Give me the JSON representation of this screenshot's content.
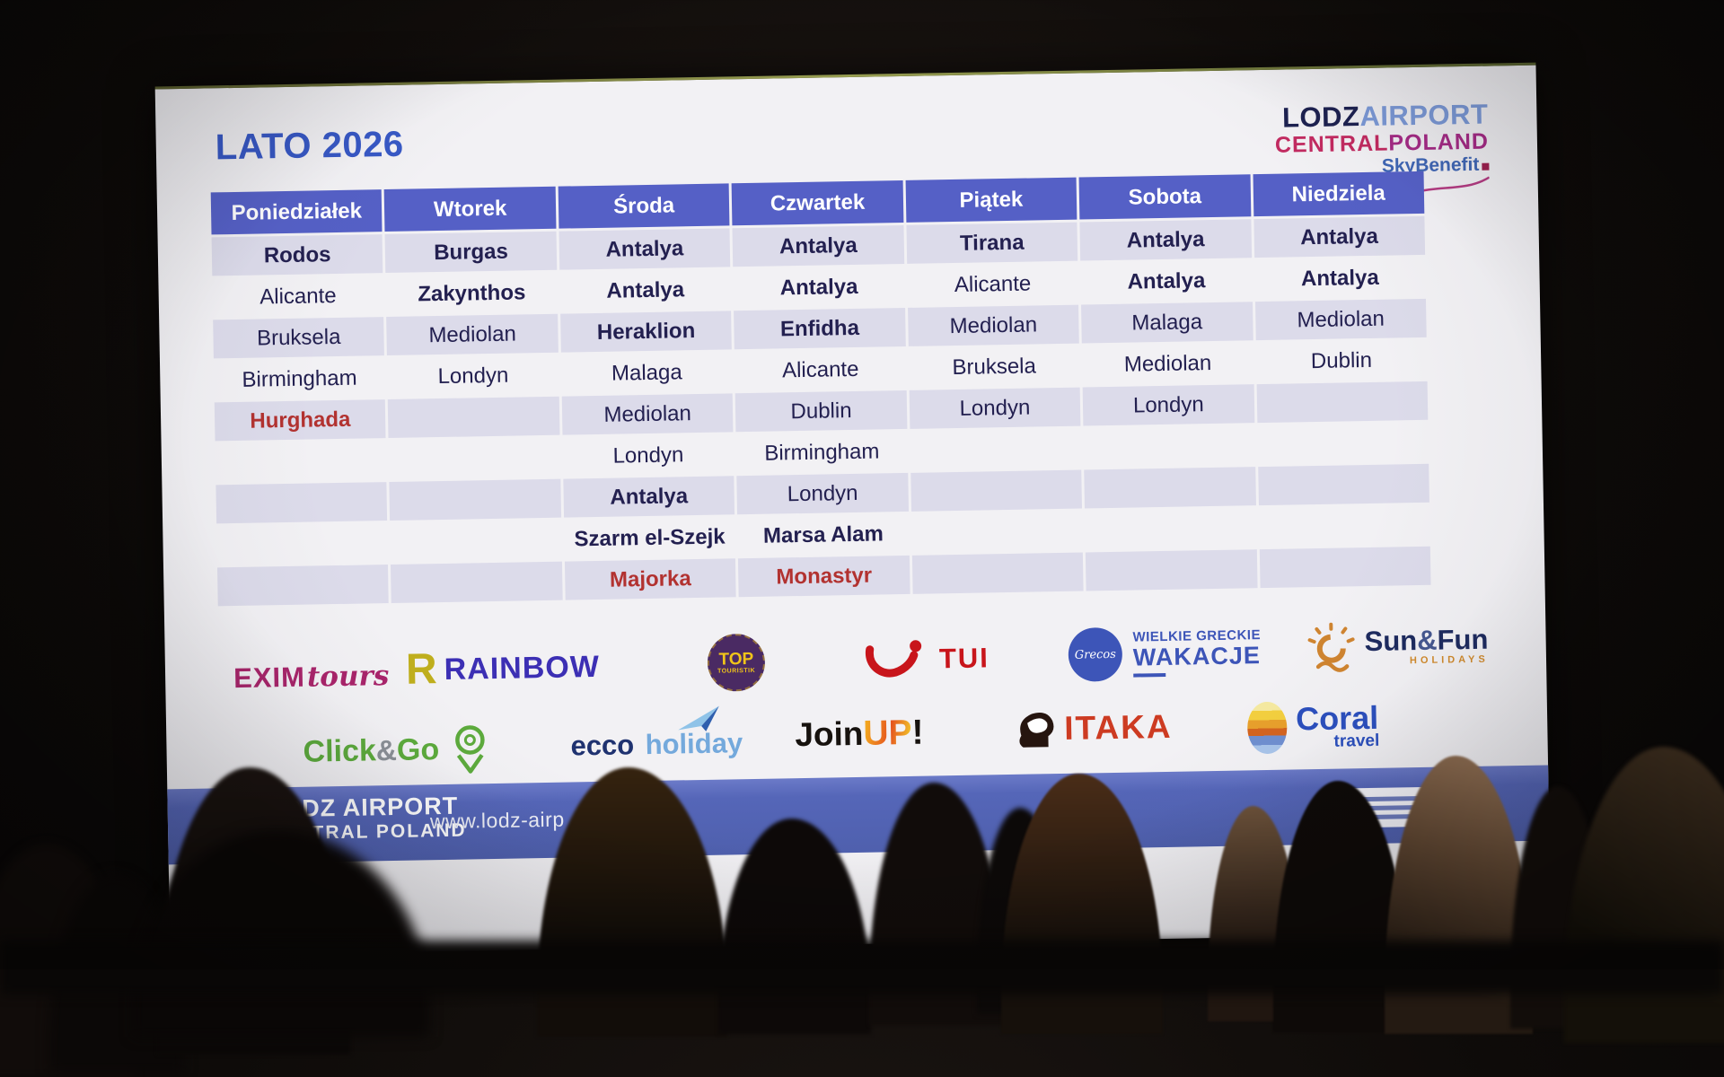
{
  "slide": {
    "title": "LATO 2026",
    "brand": {
      "name_dark": "LODZ",
      "name_light": "AIRPORT",
      "region_a": "CENTRAL",
      "region_b": "POLAND",
      "tagline": "SkyBenefit"
    },
    "schedule": {
      "type": "table",
      "columns": [
        "Poniedziałek",
        "Wtorek",
        "Środa",
        "Czwartek",
        "Piątek",
        "Sobota",
        "Niedziela"
      ],
      "rows": [
        [
          {
            "t": "Rodos",
            "b": 1
          },
          {
            "t": "Burgas",
            "b": 1
          },
          {
            "t": "Antalya",
            "b": 1
          },
          {
            "t": "Antalya",
            "b": 1
          },
          {
            "t": "Tirana",
            "b": 1
          },
          {
            "t": "Antalya",
            "b": 1
          },
          {
            "t": "Antalya",
            "b": 1
          }
        ],
        [
          {
            "t": "Alicante"
          },
          {
            "t": "Zakynthos",
            "b": 1
          },
          {
            "t": "Antalya",
            "b": 1
          },
          {
            "t": "Antalya",
            "b": 1
          },
          {
            "t": "Alicante"
          },
          {
            "t": "Antalya",
            "b": 1
          },
          {
            "t": "Antalya",
            "b": 1
          }
        ],
        [
          {
            "t": "Bruksela"
          },
          {
            "t": "Mediolan"
          },
          {
            "t": "Heraklion",
            "b": 1
          },
          {
            "t": "Enfidha",
            "b": 1
          },
          {
            "t": "Mediolan"
          },
          {
            "t": "Malaga"
          },
          {
            "t": "Mediolan"
          }
        ],
        [
          {
            "t": "Birmingham"
          },
          {
            "t": "Londyn"
          },
          {
            "t": "Malaga"
          },
          {
            "t": "Alicante"
          },
          {
            "t": "Bruksela"
          },
          {
            "t": "Mediolan"
          },
          {
            "t": "Dublin"
          }
        ],
        [
          {
            "t": "Hurghada",
            "b": 1,
            "r": 1
          },
          {},
          {
            "t": "Mediolan"
          },
          {
            "t": "Dublin"
          },
          {
            "t": "Londyn"
          },
          {
            "t": "Londyn"
          },
          {}
        ],
        [
          {},
          {},
          {
            "t": "Londyn"
          },
          {
            "t": "Birmingham"
          },
          {},
          {},
          {}
        ],
        [
          {},
          {},
          {
            "t": "Antalya",
            "b": 1
          },
          {
            "t": "Londyn"
          },
          {},
          {},
          {}
        ],
        [
          {},
          {},
          {
            "t": "Szarm el-Szejk",
            "b": 1
          },
          {
            "t": "Marsa Alam",
            "b": 1
          },
          {},
          {},
          {}
        ],
        [
          {},
          {},
          {
            "t": "Majorka",
            "b": 1,
            "r": 1
          },
          {
            "t": "Monastyr",
            "b": 1,
            "r": 1
          },
          {},
          {},
          {}
        ]
      ]
    },
    "operators": {
      "exim": {
        "p1": "EXIM",
        "p2": "tours"
      },
      "rainbow": {
        "icon": "R",
        "text": "RAINBOW"
      },
      "top": {
        "l1": "TOP",
        "l2": "TOURISTIK"
      },
      "tui": {
        "text": "TUI"
      },
      "grecos": {
        "circle": "Grecos",
        "l1": "WIELKIE GRECKIE",
        "l2": "WAKACJE"
      },
      "sunfun": {
        "p1": "Sun",
        "amp": "&",
        "p2": "Fun",
        "sub": "HOLIDAYS"
      },
      "clickgo": {
        "p1": "Click",
        "amp": "&",
        "p2": "Go"
      },
      "ecco": {
        "p1": "ecco",
        "p2": "holiday"
      },
      "joinup": {
        "p1": "Join",
        "p2": "UP",
        "p3": "!"
      },
      "itaka": {
        "text": "ITAKA"
      },
      "coral": {
        "p1": "Coral",
        "p2": "travel"
      }
    },
    "footer": {
      "logo_line1": "LODZ AIRPORT",
      "logo_line2": "CENTRAL POLAND",
      "url": "www.lodz-airp"
    }
  },
  "colors": {
    "title_blue": "#3758c5",
    "header_blue": "#5560c6",
    "row_stripe": "#dcdbea",
    "text_navy": "#232050",
    "text_red": "#b23230",
    "footer_blue": "#5566b8",
    "brand_magenta": "#c22a60"
  }
}
